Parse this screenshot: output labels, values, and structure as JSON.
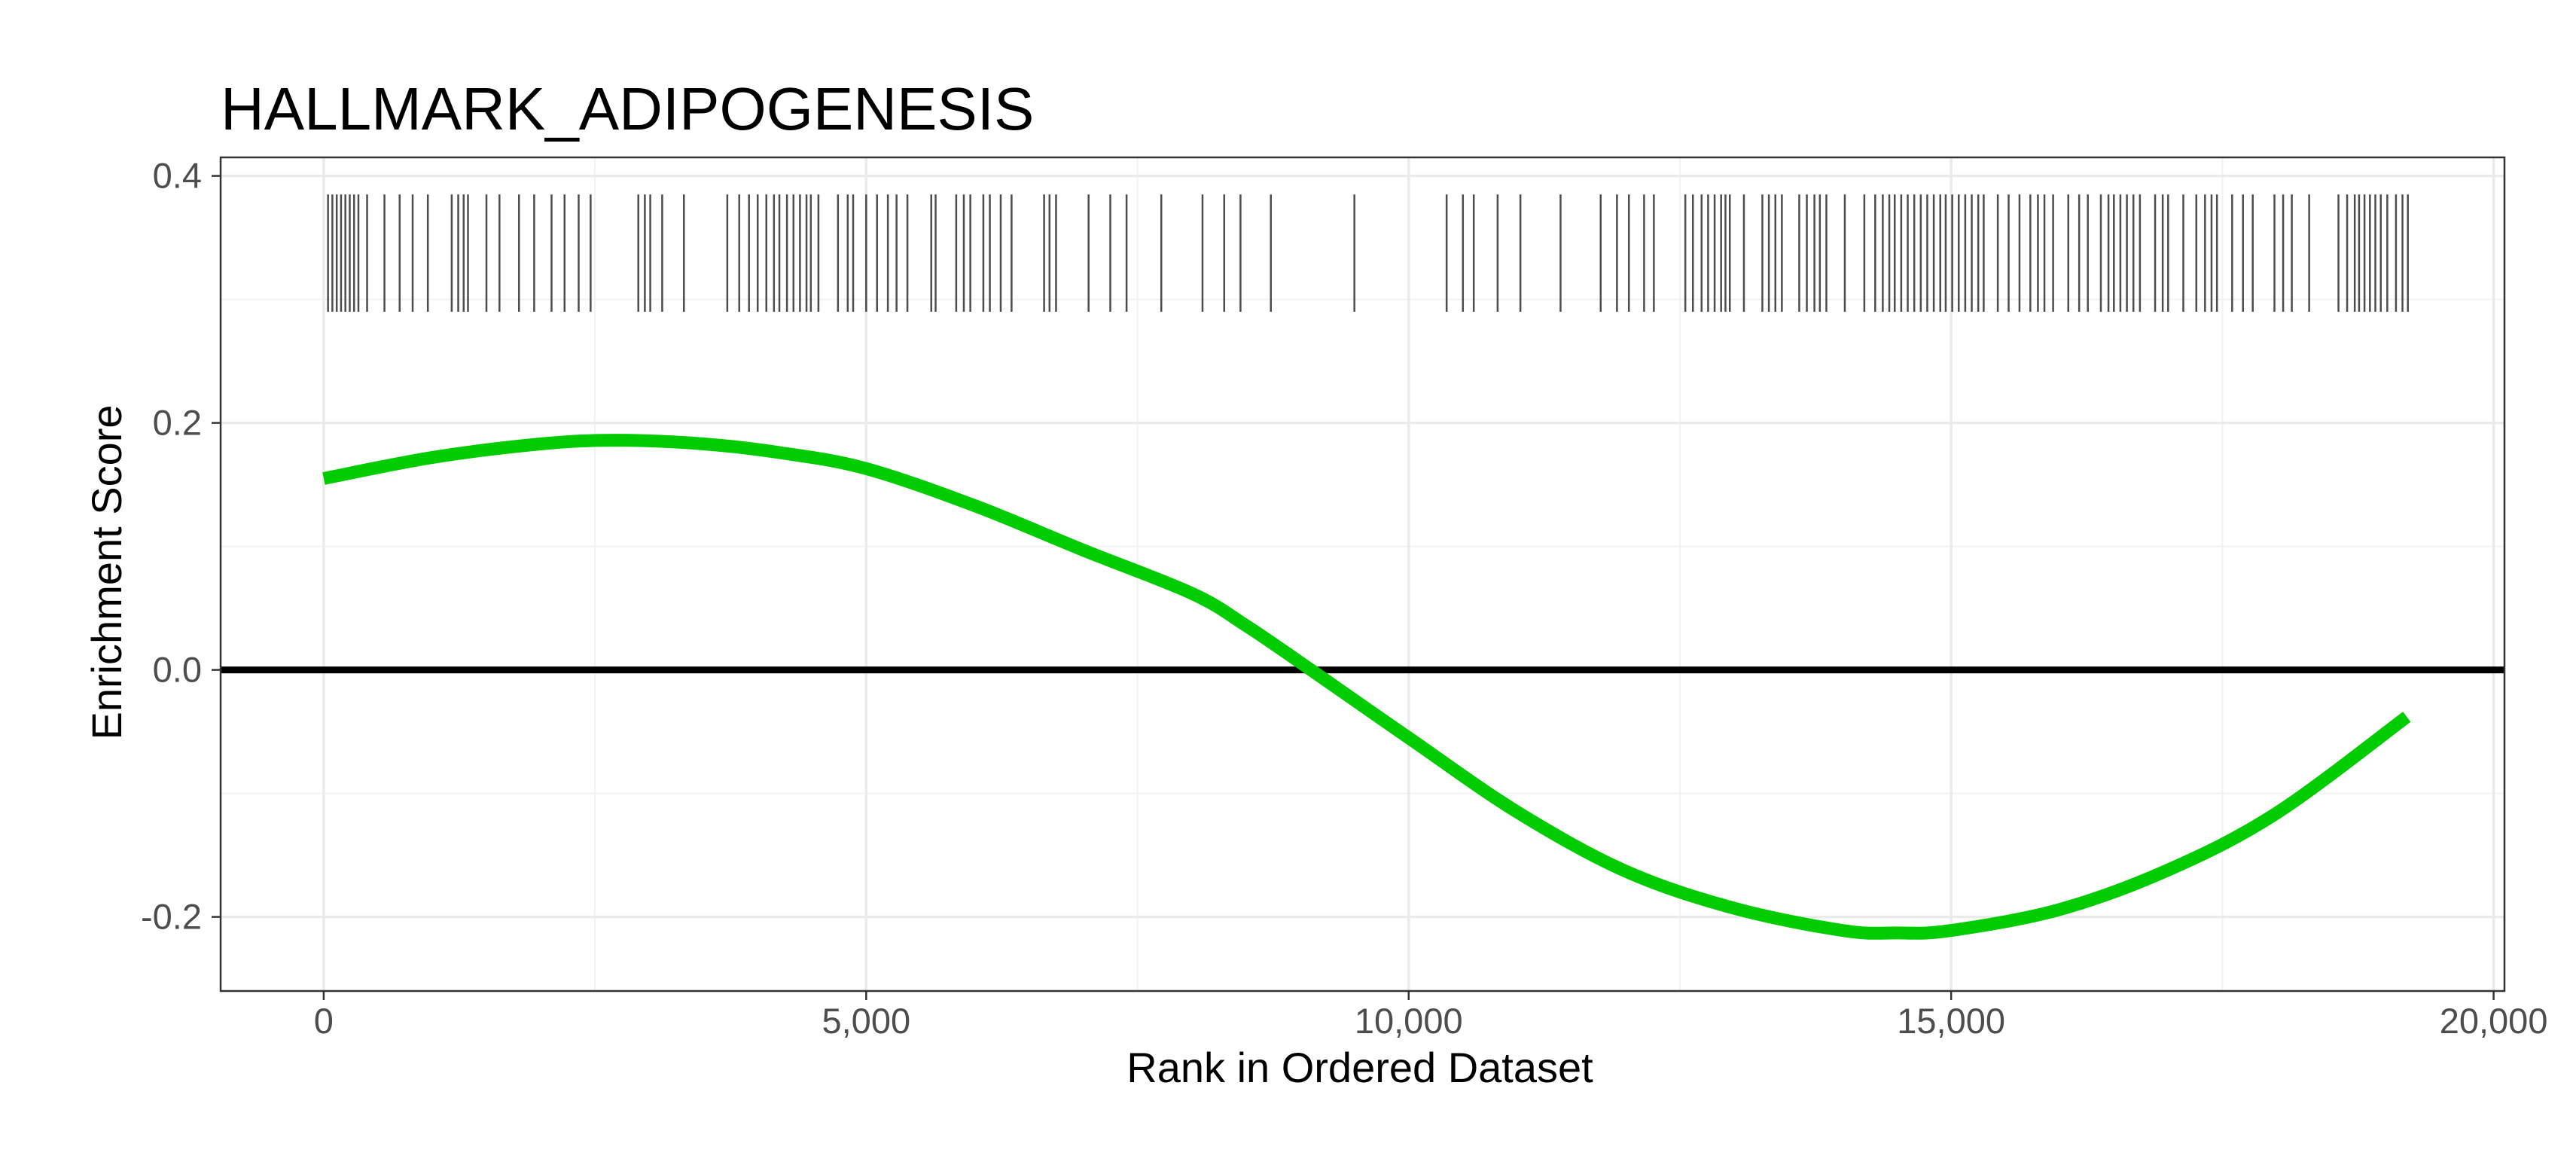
{
  "chart_data": {
    "type": "line",
    "title": "HALLMARK_ADIPOGENESIS",
    "xlabel": "Rank in Ordered Dataset",
    "ylabel": "Enrichment Score",
    "xlim": [
      -950,
      20100
    ],
    "ylim": [
      -0.26,
      0.415
    ],
    "x_ticks": [
      0,
      5000,
      10000,
      15000,
      20000
    ],
    "x_tick_labels": [
      "0",
      "5,000",
      "10,000",
      "15,000",
      "20,000"
    ],
    "y_ticks": [
      -0.2,
      0.0,
      0.2,
      0.4
    ],
    "y_tick_labels": [
      "-0.2",
      "0.0",
      "0.2",
      "0.4"
    ],
    "grid": true,
    "legend": "none",
    "series": [
      {
        "color": "#00cc00",
        "x": [
          0,
          1000,
          2000,
          2700,
          3500,
          4200,
          5000,
          6000,
          7000,
          8000,
          8500,
          9100,
          10000,
          11000,
          12000,
          13000,
          14000,
          14500,
          15000,
          16000,
          17000,
          18000,
          19200
        ],
        "y": [
          0.155,
          0.172,
          0.183,
          0.186,
          0.183,
          0.176,
          0.163,
          0.133,
          0.097,
          0.062,
          0.036,
          0.0,
          -0.055,
          -0.115,
          -0.163,
          -0.193,
          -0.211,
          -0.213,
          -0.211,
          -0.194,
          -0.162,
          -0.116,
          -0.038
        ]
      }
    ],
    "zero_line": {
      "y": 0,
      "color": "#000000"
    },
    "gene_hits": {
      "y_range": [
        0.29,
        0.385
      ],
      "color": "#4d4d4d",
      "ranks": [
        40,
        80,
        120,
        160,
        200,
        240,
        280,
        320,
        400,
        560,
        700,
        820,
        960,
        1180,
        1240,
        1290,
        1330,
        1500,
        1620,
        1800,
        1940,
        2100,
        2220,
        2350,
        2460,
        2900,
        2960,
        3010,
        3120,
        3320,
        3720,
        3830,
        3920,
        4000,
        4080,
        4150,
        4200,
        4270,
        4330,
        4390,
        4450,
        4490,
        4560,
        4740,
        4830,
        4880,
        5000,
        5100,
        5200,
        5280,
        5380,
        5600,
        5640,
        5830,
        5900,
        5960,
        6080,
        6140,
        6240,
        6340,
        6640,
        6690,
        6750,
        7050,
        7250,
        7400,
        7720,
        8100,
        8300,
        8450,
        8730,
        9500,
        10350,
        10500,
        10600,
        10820,
        11030,
        11400,
        11770,
        11920,
        12030,
        12170,
        12260,
        12550,
        12620,
        12700,
        12760,
        12820,
        12880,
        12920,
        12960,
        13090,
        13260,
        13320,
        13380,
        13440,
        13600,
        13670,
        13740,
        13790,
        13850,
        14020,
        14200,
        14300,
        14370,
        14430,
        14480,
        14540,
        14600,
        14660,
        14720,
        14780,
        14840,
        14900,
        14950,
        15010,
        15070,
        15130,
        15190,
        15250,
        15300,
        15430,
        15530,
        15630,
        15730,
        15800,
        15860,
        15940,
        16080,
        16180,
        16260,
        16380,
        16450,
        16500,
        16560,
        16620,
        16680,
        16740,
        16880,
        16950,
        17000,
        17140,
        17260,
        17340,
        17400,
        17450,
        17590,
        17690,
        17780,
        17980,
        18060,
        18140,
        18300,
        18570,
        18650,
        18720,
        18760,
        18810,
        18860,
        18910,
        18960,
        19020,
        19100,
        19160,
        19210
      ]
    }
  }
}
